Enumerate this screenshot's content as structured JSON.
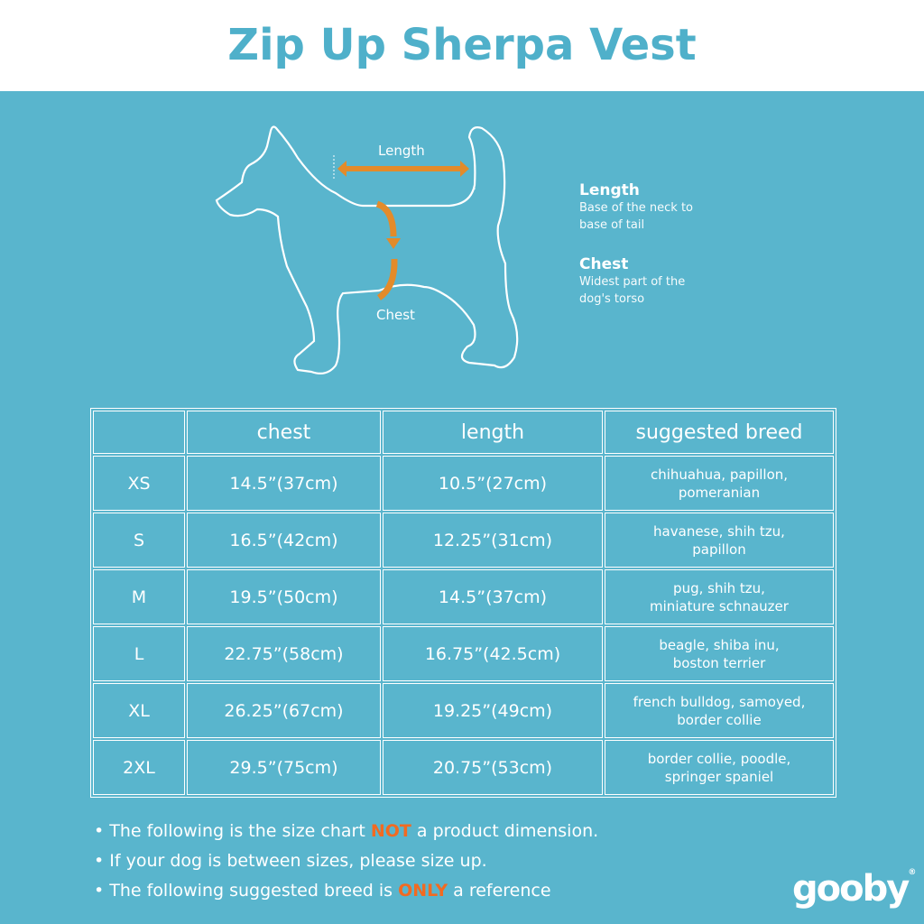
{
  "title": "Zip Up Sherpa Vest",
  "diagram": {
    "length_label": "Length",
    "chest_label": "Chest"
  },
  "legend": [
    {
      "heading": "Length",
      "desc1": "Base of the neck to",
      "desc2": "base of tail"
    },
    {
      "heading": "Chest",
      "desc1": "Widest part of the",
      "desc2": "dog's torso"
    }
  ],
  "table": {
    "headers": [
      "",
      "chest",
      "length",
      "suggested breed"
    ],
    "rows": [
      {
        "size": "XS",
        "chest": "14.5”(37cm)",
        "length": "10.5”(27cm)",
        "breed1": "chihuahua, papillon,",
        "breed2": "pomeranian"
      },
      {
        "size": "S",
        "chest": "16.5”(42cm)",
        "length": "12.25”(31cm)",
        "breed1": "havanese, shih tzu,",
        "breed2": "papillon"
      },
      {
        "size": "M",
        "chest": "19.5”(50cm)",
        "length": "14.5”(37cm)",
        "breed1": "pug, shih tzu,",
        "breed2": "miniature schnauzer"
      },
      {
        "size": "L",
        "chest": "22.75”(58cm)",
        "length": "16.75”(42.5cm)",
        "breed1": "beagle, shiba inu,",
        "breed2": "boston terrier"
      },
      {
        "size": "XL",
        "chest": "26.25”(67cm)",
        "length": "19.25”(49cm)",
        "breed1": "french bulldog, samoyed,",
        "breed2": "border collie"
      },
      {
        "size": "2XL",
        "chest": "29.5”(75cm)",
        "length": "20.75”(53cm)",
        "breed1": "border collie, poodle,",
        "breed2": "springer spaniel"
      }
    ]
  },
  "notes": [
    {
      "pre": "• The following is the size chart ",
      "em": "NOT",
      "post": " a product dimension."
    },
    {
      "pre": "• If your dog is between sizes, please size up.",
      "em": "",
      "post": ""
    },
    {
      "pre": "• The following suggested breed is ",
      "em": "ONLY",
      "post": " a reference"
    }
  ],
  "logo": "gooby",
  "colors": {
    "background": "#59b5cd",
    "title": "#4fb0ca",
    "arrow": "#e38b2a",
    "emphasis": "#f26a21"
  }
}
